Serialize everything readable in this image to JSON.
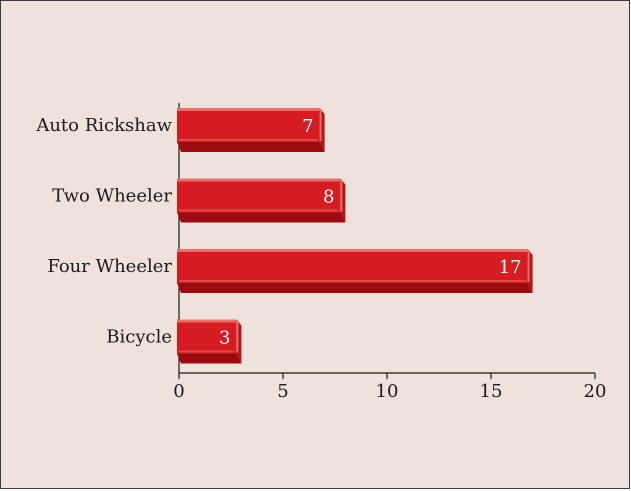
{
  "chart_data": {
    "type": "bar",
    "orientation": "horizontal",
    "categories": [
      "Auto Rickshaw",
      "Two Wheeler",
      "Four Wheeler",
      "Bicycle"
    ],
    "values": [
      7,
      8,
      17,
      3
    ],
    "title": "",
    "xlabel": "",
    "ylabel": "",
    "xlim": [
      0,
      20
    ],
    "xticks": [
      0,
      5,
      10,
      15,
      20
    ],
    "data_labels": [
      "7",
      "8",
      "17",
      "3"
    ],
    "grid": false,
    "legend": "none",
    "colors": {
      "bar": "#d41c22",
      "bar_top": "#ec6e6a",
      "bar_bottom": "#9a0c10",
      "bar_end": "#b51418",
      "background": "#efe1dc",
      "axis": "#1a1a1a"
    }
  }
}
